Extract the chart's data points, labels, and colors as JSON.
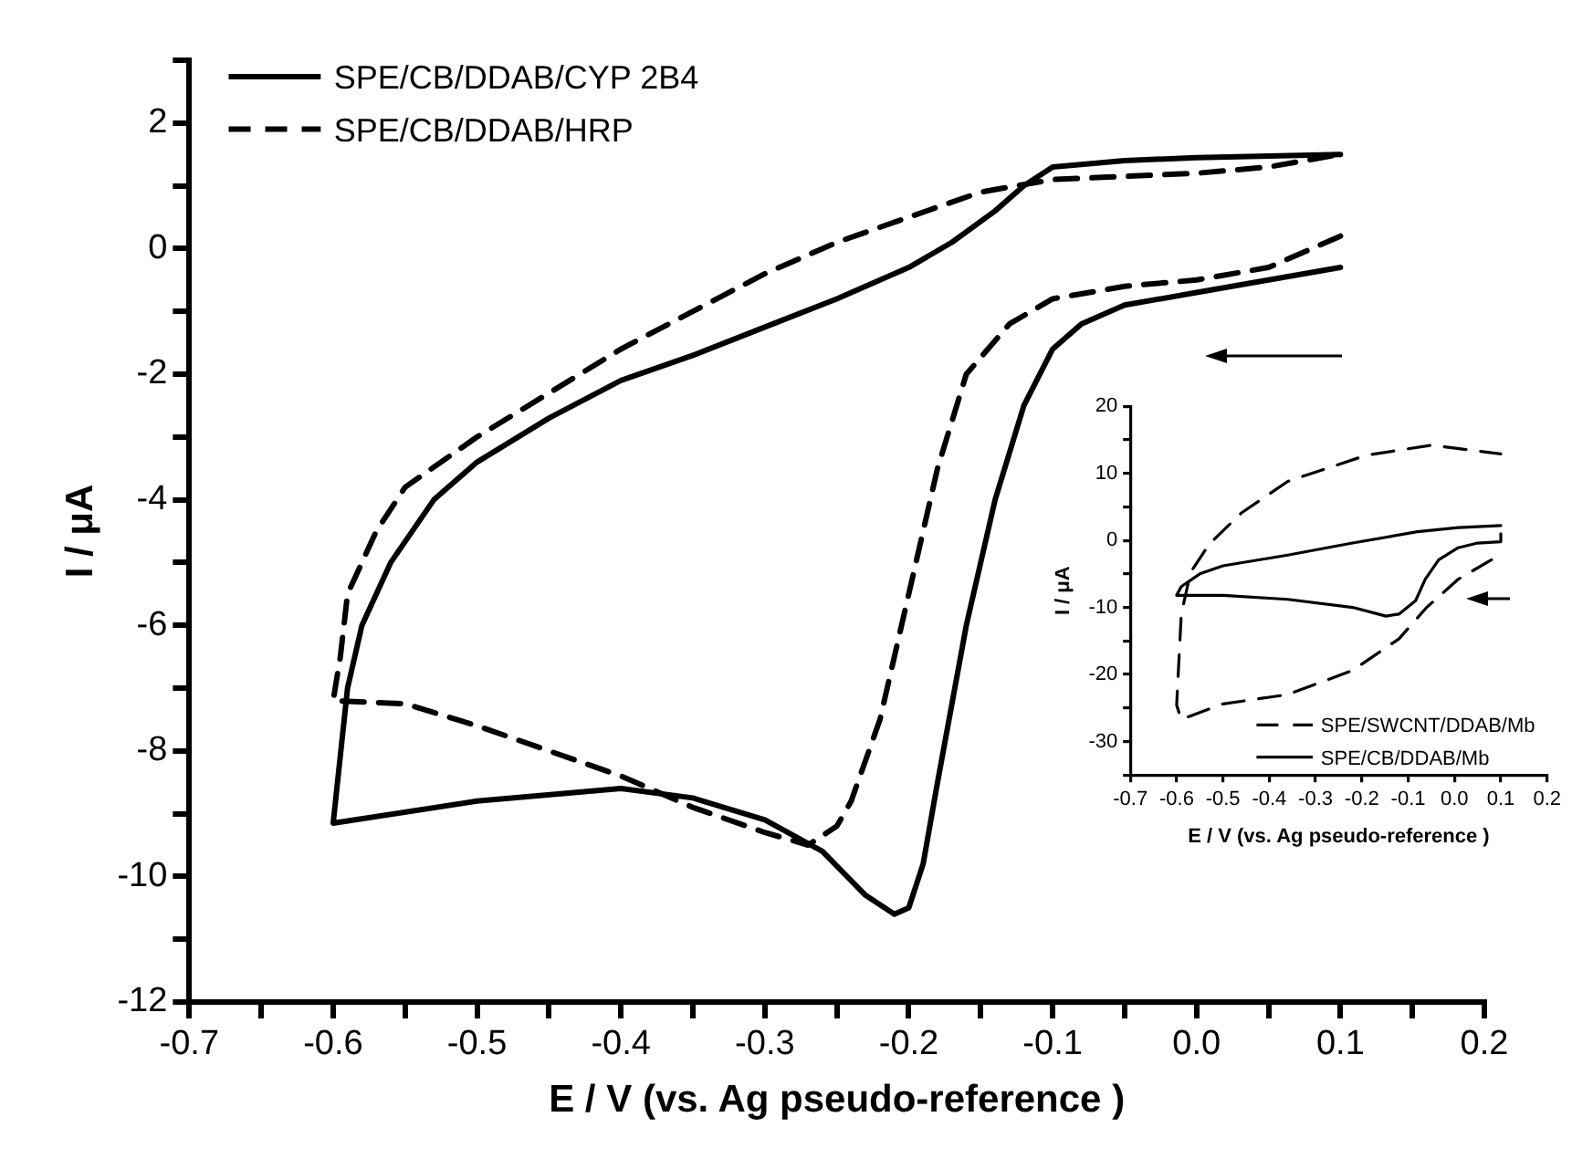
{
  "chart_data": [
    {
      "type": "line",
      "xlabel": "E / V (vs. Ag pseudo-reference )",
      "ylabel": "I / μA",
      "xlim": [
        -0.7,
        0.2
      ],
      "ylim": [
        -12,
        3
      ],
      "xticks": [
        -0.7,
        {
          "value": -0.65,
          "label": null
        },
        -0.6,
        {
          "value": -0.55,
          "label": null
        },
        -0.5,
        {
          "value": -0.45,
          "label": null
        },
        -0.4,
        {
          "value": -0.35,
          "label": null
        },
        -0.3,
        {
          "value": -0.25,
          "label": null
        },
        -0.2,
        {
          "value": -0.15,
          "label": null
        },
        -0.1,
        {
          "value": -0.05,
          "label": null
        },
        {
          "value": 0,
          "label": "0.0"
        },
        {
          "value": 0.05,
          "label": null
        },
        0.1,
        {
          "value": 0.15,
          "label": null
        },
        0.2
      ],
      "yticks": [
        -12,
        {
          "value": -11,
          "label": null
        },
        -10,
        {
          "value": -9,
          "label": null
        },
        -8,
        {
          "value": -7,
          "label": null
        },
        -6,
        {
          "value": -5,
          "label": null
        },
        -4,
        {
          "value": -3,
          "label": null
        },
        -2,
        {
          "value": -1,
          "label": null
        },
        0,
        {
          "value": 1,
          "label": null
        },
        2,
        {
          "value": 3,
          "label": null
        }
      ],
      "grid": false,
      "legend": "top left",
      "marker": "none",
      "series": [
        {
          "name": "SPE/CB/DDAB/CYP 2B4",
          "color": "#000000",
          "line_style": "solid",
          "x": [
            0.1,
            0.05,
            0,
            -0.05,
            -0.08,
            -0.1,
            -0.12,
            -0.14,
            -0.16,
            -0.18,
            -0.19,
            -0.2,
            -0.21,
            -0.23,
            -0.26,
            -0.3,
            -0.35,
            -0.4,
            -0.5,
            -0.6,
            -0.59,
            -0.58,
            -0.56,
            -0.53,
            -0.5,
            -0.45,
            -0.4,
            -0.35,
            -0.3,
            -0.25,
            -0.2,
            -0.17,
            -0.14,
            -0.12,
            -0.1,
            -0.05,
            0,
            0.1
          ],
          "values": [
            -0.3,
            -0.5,
            -0.7,
            -0.9,
            -1.2,
            -1.6,
            -2.5,
            -4,
            -6,
            -8.5,
            -9.8,
            -10.5,
            -10.6,
            -10.3,
            -9.6,
            -9.1,
            -8.75,
            -8.6,
            -8.8,
            -9.15,
            -7,
            -6,
            -5,
            -4,
            -3.4,
            -2.7,
            -2.1,
            -1.7,
            -1.25,
            -0.8,
            -0.3,
            0.1,
            0.6,
            1,
            1.3,
            1.4,
            1.45,
            1.5
          ]
        },
        {
          "name": "SPE/CB/DDAB/HRP",
          "color": "#000000",
          "line_style": "dashed",
          "x": [
            0.1,
            0.05,
            0,
            -0.05,
            -0.1,
            -0.13,
            -0.16,
            -0.18,
            -0.2,
            -0.22,
            -0.24,
            -0.25,
            -0.27,
            -0.3,
            -0.35,
            -0.4,
            -0.5,
            -0.55,
            -0.6,
            -0.595,
            -0.59,
            -0.57,
            -0.55,
            -0.5,
            -0.45,
            -0.4,
            -0.35,
            -0.3,
            -0.25,
            -0.2,
            -0.15,
            -0.1,
            0,
            0.05,
            0.1
          ],
          "values": [
            0.2,
            -0.3,
            -0.5,
            -0.6,
            -0.8,
            -1.2,
            -2,
            -3.5,
            -5.5,
            -7.5,
            -8.8,
            -9.2,
            -9.5,
            -9.3,
            -8.9,
            -8.4,
            -7.6,
            -7.25,
            -7.2,
            -6.5,
            -5.5,
            -4.5,
            -3.8,
            -3,
            -2.3,
            -1.6,
            -1,
            -0.4,
            0.1,
            0.5,
            0.9,
            1.1,
            1.2,
            1.3,
            1.5
          ]
        }
      ]
    },
    {
      "type": "line",
      "xlabel": "E / V (vs. Ag pseudo-reference )",
      "ylabel": "I / μA",
      "xlim": [
        -0.7,
        0.2
      ],
      "ylim": [
        -35,
        20
      ],
      "xticks": [
        -0.7,
        -0.6,
        -0.5,
        -0.4,
        -0.3,
        -0.2,
        -0.1,
        {
          "value": 0,
          "label": "0.0"
        },
        0.1,
        0.2
      ],
      "yticks": [
        {
          "value": -35,
          "label": null
        },
        -30,
        {
          "value": -25,
          "label": null
        },
        -20,
        {
          "value": -15,
          "label": null
        },
        -10,
        {
          "value": -5,
          "label": null
        },
        0,
        {
          "value": 5,
          "label": null
        },
        10,
        {
          "value": 15,
          "label": null
        },
        20
      ],
      "grid": false,
      "legend": "bottom right",
      "marker": "none",
      "series": [
        {
          "name": "SPE/SWCNT/DDAB/Mb",
          "color": "#000000",
          "line_style": "dashed",
          "x": [
            0.08,
            0.008,
            -0.06,
            -0.12,
            -0.22,
            -0.36,
            -0.5,
            -0.59,
            -0.6,
            -0.59,
            -0.57,
            -0.53,
            -0.46,
            -0.36,
            -0.19,
            -0.05,
            0.1
          ],
          "values": [
            -2.9,
            -5.8,
            -10,
            -14.7,
            -19.4,
            -23,
            -24.4,
            -26.7,
            -24.6,
            -11,
            -4.8,
            -0.6,
            4.1,
            8.8,
            12.7,
            14.2,
            12.9
          ]
        },
        {
          "name": "SPE/CB/DDAB/Mb",
          "color": "#000000",
          "line_style": "solid",
          "x": [
            0.1,
            0.1,
            0.05,
            0.008,
            -0.034,
            -0.063,
            -0.084,
            -0.12,
            -0.148,
            -0.22,
            -0.36,
            -0.5,
            -0.6,
            -0.59,
            -0.55,
            -0.5,
            -0.36,
            -0.22,
            -0.08,
            0.008,
            0.1
          ],
          "values": [
            1,
            -0.2,
            -0.4,
            -1.1,
            -2.9,
            -5.8,
            -9,
            -11,
            -11.3,
            -10,
            -8.8,
            -8.2,
            -8.2,
            -6.9,
            -5,
            -3.8,
            -2.2,
            -0.4,
            1.3,
            1.9,
            2.2
          ]
        }
      ]
    }
  ]
}
